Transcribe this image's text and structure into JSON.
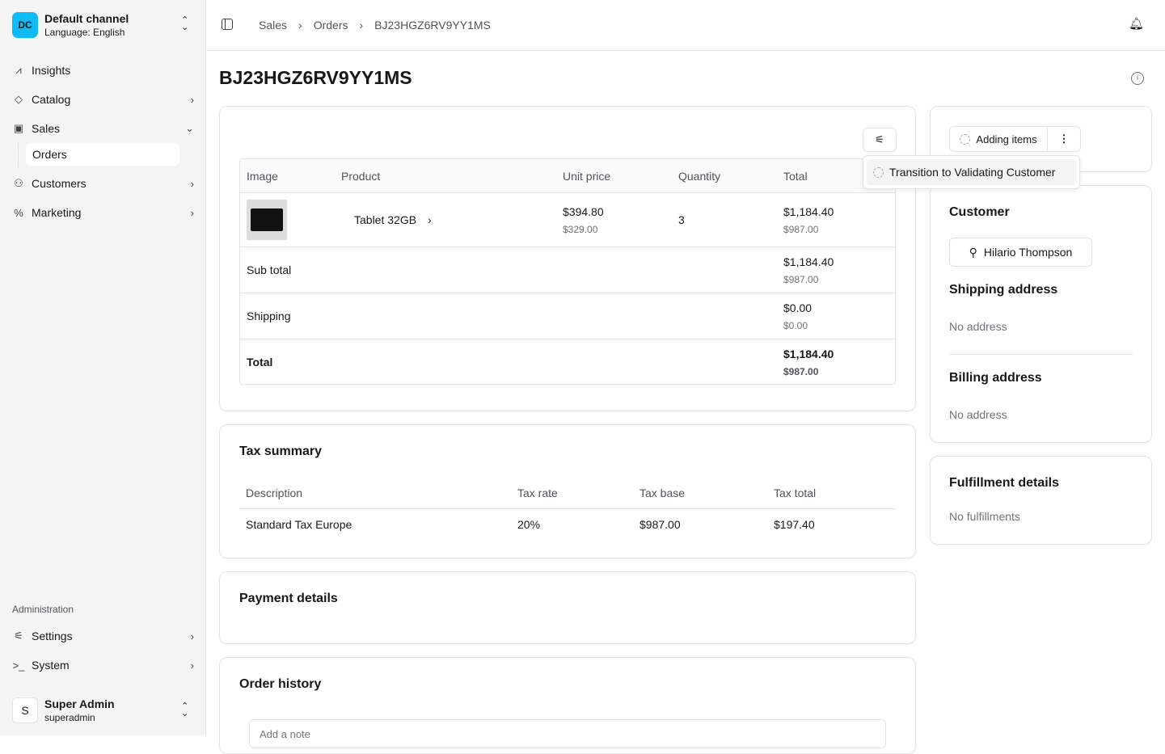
{
  "channel": {
    "initials": "DC",
    "name": "Default channel",
    "language": "Language: English"
  },
  "nav": [
    {
      "label": "Insights",
      "icon": "chart-line-icon"
    },
    {
      "label": "Catalog",
      "icon": "tags-icon"
    },
    {
      "label": "Sales",
      "icon": "shopping-bag-icon"
    },
    {
      "label": "Customers",
      "icon": "users-icon"
    },
    {
      "label": "Marketing",
      "icon": "percent-icon"
    }
  ],
  "sales_sub": "Orders",
  "admin": {
    "title": "Administration",
    "items": [
      {
        "label": "Settings",
        "icon": "settings-icon"
      },
      {
        "label": "System",
        "icon": "terminal-icon"
      }
    ]
  },
  "user": {
    "initial": "S",
    "name": "Super Admin",
    "username": "superadmin"
  },
  "breadcrumb": [
    "Sales",
    "Orders",
    "BJ23HGZ6RV9YY1MS"
  ],
  "title": "BJ23HGZ6RV9YY1MS",
  "lines": {
    "headers": [
      "Image",
      "Product",
      "Unit price",
      "Quantity",
      "Total"
    ],
    "items": [
      {
        "product": "Tablet 32GB",
        "unit": "$394.80",
        "unit_net": "$329.00",
        "qty": "3",
        "total": "$1,184.40",
        "total_net": "$987.00"
      }
    ],
    "subtotal": {
      "label": "Sub total",
      "value": "$1,184.40",
      "net": "$987.00"
    },
    "shipping": {
      "label": "Shipping",
      "value": "$0.00",
      "net": "$0.00"
    },
    "total": {
      "label": "Total",
      "value": "$1,184.40",
      "net": "$987.00"
    }
  },
  "dropdown_item": "Transition to Validating Customer",
  "state_button": "Adding items",
  "tax": {
    "title": "Tax summary",
    "headers": [
      "Description",
      "Tax rate",
      "Tax base",
      "Tax total"
    ],
    "rows": [
      [
        "Standard Tax Europe",
        "20%",
        "$987.00",
        "$197.40"
      ]
    ]
  },
  "payment": {
    "title": "Payment details"
  },
  "history": {
    "title": "Order history",
    "placeholder": "Add a note"
  },
  "customer": {
    "title": "Customer",
    "name": "Hilario Thompson",
    "shipping_title": "Shipping address",
    "shipping": "No address",
    "billing_title": "Billing address",
    "billing": "No address"
  },
  "fulfillment": {
    "title": "Fulfillment details",
    "value": "No fulfillments"
  }
}
